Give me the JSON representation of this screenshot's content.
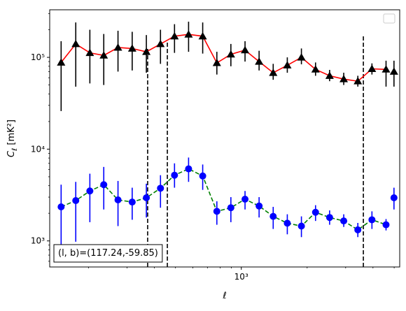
{
  "chart_data": {
    "type": "line",
    "title": "",
    "xlabel": "ℓ",
    "ylabel": "C_ℓ [mK²]",
    "xscale": "log",
    "yscale": "log",
    "xlim": [
      133,
      5300
    ],
    "ylim": [
      520,
      330000
    ],
    "grid": false,
    "legend": "top-right, empty",
    "x_tick_labels": [
      {
        "value": 1000,
        "label": "10³"
      }
    ],
    "y_tick_labels": [
      {
        "value": 1000,
        "label": "10³"
      },
      {
        "value": 10000,
        "label": "10⁴"
      },
      {
        "value": 100000,
        "label": "10⁵"
      }
    ],
    "vertical_lines": [
      {
        "x": 373,
        "style": "dashed",
        "ymax": 130000
      },
      {
        "x": 459,
        "style": "dashed",
        "ymax": 150000
      },
      {
        "x": 3615,
        "style": "dashed",
        "ymax": 170000
      }
    ],
    "annotation": {
      "text": "(l, b)=(117.24,-59.85)"
    },
    "series": [
      {
        "marker": "triangle",
        "marker_color": "#000000",
        "line_color": "#ff0000",
        "line_style": "solid",
        "error_color": "#000000",
        "x": [
          150,
          175,
          203,
          235,
          273,
          317,
          368,
          427,
          495,
          574,
          666,
          773,
          896,
          1040,
          1206,
          1399,
          1623,
          1883,
          2185,
          2534,
          2940,
          3411,
          3957,
          4590
        ],
        "y": [
          88000,
          140000,
          112000,
          105000,
          128000,
          125000,
          115000,
          140000,
          170000,
          178000,
          170000,
          87000,
          108000,
          120000,
          90000,
          68000,
          82000,
          100000,
          74000,
          63000,
          58000,
          55000,
          75000,
          74000
        ],
        "err_low": [
          26000,
          48000,
          52000,
          50000,
          70000,
          72000,
          68000,
          85000,
          112000,
          115000,
          110000,
          65000,
          80000,
          90000,
          72000,
          57000,
          68000,
          84000,
          63000,
          55000,
          50000,
          48000,
          65000,
          48000
        ],
        "err_high": [
          150000,
          240000,
          200000,
          180000,
          195000,
          190000,
          175000,
          200000,
          230000,
          245000,
          240000,
          115000,
          140000,
          150000,
          118000,
          85000,
          100000,
          125000,
          88000,
          73000,
          68000,
          63000,
          86000,
          92000
        ]
      },
      {
        "marker": "circle",
        "marker_color": "#0000ff",
        "line_color": "#008000",
        "line_style": "dashed",
        "error_color": "#0000ff",
        "x": [
          150,
          175,
          203,
          235,
          273,
          317,
          368,
          427,
          495,
          574,
          666,
          773,
          896,
          1040,
          1206,
          1399,
          1623,
          1883,
          2185,
          2534,
          2940,
          3411,
          3957,
          4590
        ],
        "y": [
          2350,
          2750,
          3500,
          4100,
          2800,
          2650,
          2950,
          3750,
          5200,
          6100,
          5100,
          2100,
          2300,
          2850,
          2400,
          1850,
          1560,
          1450,
          2050,
          1800,
          1650,
          1320,
          1700,
          1500
        ],
        "err_low": [
          920,
          980,
          1600,
          2200,
          1450,
          1700,
          1800,
          2300,
          3800,
          4400,
          3600,
          1500,
          1600,
          2200,
          1800,
          1350,
          1180,
          1100,
          1650,
          1500,
          1420,
          1100,
          1350,
          1300
        ],
        "err_high": [
          4100,
          4400,
          5400,
          6400,
          4500,
          3800,
          4200,
          5200,
          7000,
          8100,
          6800,
          2700,
          3000,
          3500,
          3000,
          2350,
          1950,
          1850,
          2450,
          2150,
          1950,
          1570,
          2100,
          1730
        ]
      }
    ],
    "extra_points": [
      {
        "series": 0,
        "x": 4990,
        "y": 70000,
        "err_low": 48000,
        "err_high": 92000
      },
      {
        "series": 1,
        "x": 4990,
        "y": 2950,
        "err_low": 2200,
        "err_high": 3800
      }
    ]
  }
}
